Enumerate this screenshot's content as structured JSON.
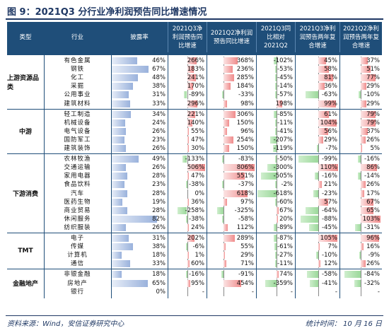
{
  "title": "图 9：2021Q3 分行业净利润预告同比增速情况",
  "source": "资料来源：Wind，安信证券研究中心",
  "stat_time": "统计时间： 10 月 16 日",
  "chart_data": {
    "type": "table",
    "columns": [
      "类型",
      "行业",
      "披露率",
      "2021Q3净利润预告同比增速",
      "2021Q2净利润预告同比增速",
      "2021Q3同比相对2021Q2",
      "2021Q3净利润预告两年复合增速",
      "2021Q2净利润预告两年复合增速"
    ],
    "colors": {
      "disclosure": "#9ab2dc",
      "positive": "#f08c8c",
      "negative": "#9bd89a",
      "header": "#1f4e79"
    },
    "groups": [
      {
        "name": "上游资源品类",
        "rows": [
          {
            "industry": "有色金属",
            "disclosure": "46%",
            "q3": "266%",
            "q2": "368%",
            "rel": "-102%",
            "c3": "45%",
            "c2": "37%"
          },
          {
            "industry": "钢铁",
            "disclosure": "67%",
            "q3": "183%",
            "q2": "236%",
            "rel": "-53%",
            "c3": "58%",
            "c2": "51%"
          },
          {
            "industry": "化工",
            "disclosure": "48%",
            "q3": "241%",
            "q2": "285%",
            "rel": "-45%",
            "c3": "81%",
            "c2": "77%"
          },
          {
            "industry": "采掘",
            "disclosure": "38%",
            "q3": "170%",
            "q2": "184%",
            "rel": "-14%",
            "c3": "36%",
            "c2": "29%"
          },
          {
            "industry": "公用事业",
            "disclosure": "31%",
            "q3": "-89%",
            "q2": "-33%",
            "rel": "-57%",
            "c3": "-63%",
            "c2": "-10%"
          },
          {
            "industry": "建筑材料",
            "disclosure": "33%",
            "q3": "296%",
            "q2": "98%",
            "rel": "198%",
            "c3": "99%",
            "c2": "29%"
          }
        ]
      },
      {
        "name": "中游",
        "rows": [
          {
            "industry": "轻工制造",
            "disclosure": "34%",
            "q3": "221%",
            "q2": "306%",
            "rel": "-85%",
            "c3": "61%",
            "c2": "79%"
          },
          {
            "industry": "机械设备",
            "disclosure": "24%",
            "q3": "140%",
            "q2": "150%",
            "rel": "-11%",
            "c3": "104%",
            "c2": "79%"
          },
          {
            "industry": "电气设备",
            "disclosure": "26%",
            "q3": "55%",
            "q2": "96%",
            "rel": "-41%",
            "c3": "56%",
            "c2": "37%"
          },
          {
            "industry": "国防军工",
            "disclosure": "23%",
            "q3": "47%",
            "q2": "254%",
            "rel": "-207%",
            "c3": "29%",
            "c2": "26%"
          },
          {
            "industry": "建筑装饰",
            "disclosure": "26%",
            "q3": "30%",
            "q2": "150%",
            "rel": "-119%",
            "c3": "-7%",
            "c2": "5%"
          }
        ]
      },
      {
        "name": "下游消费",
        "rows": [
          {
            "industry": "农林牧渔",
            "disclosure": "49%",
            "q3": "-133%",
            "q2": "-83%",
            "rel": "-50%",
            "c3": "-99%",
            "c2": "-16%"
          },
          {
            "industry": "交通运输",
            "disclosure": "26%",
            "q3": "506%",
            "q2": "806%",
            "rel": "-300%",
            "c3": "110%",
            "c2": "86%"
          },
          {
            "industry": "家用电器",
            "disclosure": "28%",
            "q3": "47%",
            "q2": "551%",
            "rel": "-505%",
            "c3": "-16%",
            "c2": "-14%"
          },
          {
            "industry": "食品饮料",
            "disclosure": "23%",
            "q3": "-38%",
            "q2": "-37%",
            "rel": "-2%",
            "c3": "21%",
            "c2": "26%"
          },
          {
            "industry": "汽车",
            "disclosure": "28%",
            "q3": "0%",
            "q2": "618%",
            "rel": "-618%",
            "c3": "-23%",
            "c2": "17%"
          },
          {
            "industry": "医药生物",
            "disclosure": "19%",
            "q3": "36%",
            "q2": "97%",
            "rel": "-60%",
            "c3": "57%",
            "c2": "67%"
          },
          {
            "industry": "商业贸易",
            "disclosure": "28%",
            "q3": "-258%",
            "q2": "-325%",
            "rel": "67%",
            "c3": "-64%",
            "c2": "65%"
          },
          {
            "industry": "休闲服务",
            "disclosure": "82%",
            "q3": "-38%",
            "q2": "-58%",
            "rel": "20%",
            "c3": "-88%",
            "c2": "103%"
          },
          {
            "industry": "纺织服装",
            "disclosure": "26%",
            "q3": "24%",
            "q2": "112%",
            "rel": "-89%",
            "c3": "-45%",
            "c2": "-31%"
          }
        ]
      },
      {
        "name": "TMT",
        "rows": [
          {
            "industry": "电子",
            "disclosure": "31%",
            "q3": "202%",
            "q2": "289%",
            "rel": "-87%",
            "c3": "105%",
            "c2": "96%"
          },
          {
            "industry": "传媒",
            "disclosure": "38%",
            "q3": "-6%",
            "q2": "55%",
            "rel": "-61%",
            "c3": "7%",
            "c2": "16%"
          },
          {
            "industry": "计算机",
            "disclosure": "18%",
            "q3": "1%",
            "q2": "29%",
            "rel": "-27%",
            "c3": "-10%",
            "c2": "-9%"
          },
          {
            "industry": "通信",
            "disclosure": "33%",
            "q3": "60%",
            "q2": "71%",
            "rel": "-11%",
            "c3": "12%",
            "c2": "26%"
          }
        ]
      },
      {
        "name": "金融地产",
        "rows": [
          {
            "industry": "非银金融",
            "disclosure": "18%",
            "q3": "-16%",
            "q2": "-91%",
            "rel": "74%",
            "c3": "-58%",
            "c2": "-84%"
          },
          {
            "industry": "房地产",
            "disclosure": "65%",
            "q3": "95%",
            "q2": "454%",
            "rel": "-359%",
            "c3": "-41%",
            "c2": "-32%"
          },
          {
            "industry": "银行",
            "disclosure": "0%",
            "q3": "-",
            "q2": "-",
            "rel": "-",
            "c3": "-",
            "c2": "-"
          }
        ]
      }
    ]
  }
}
